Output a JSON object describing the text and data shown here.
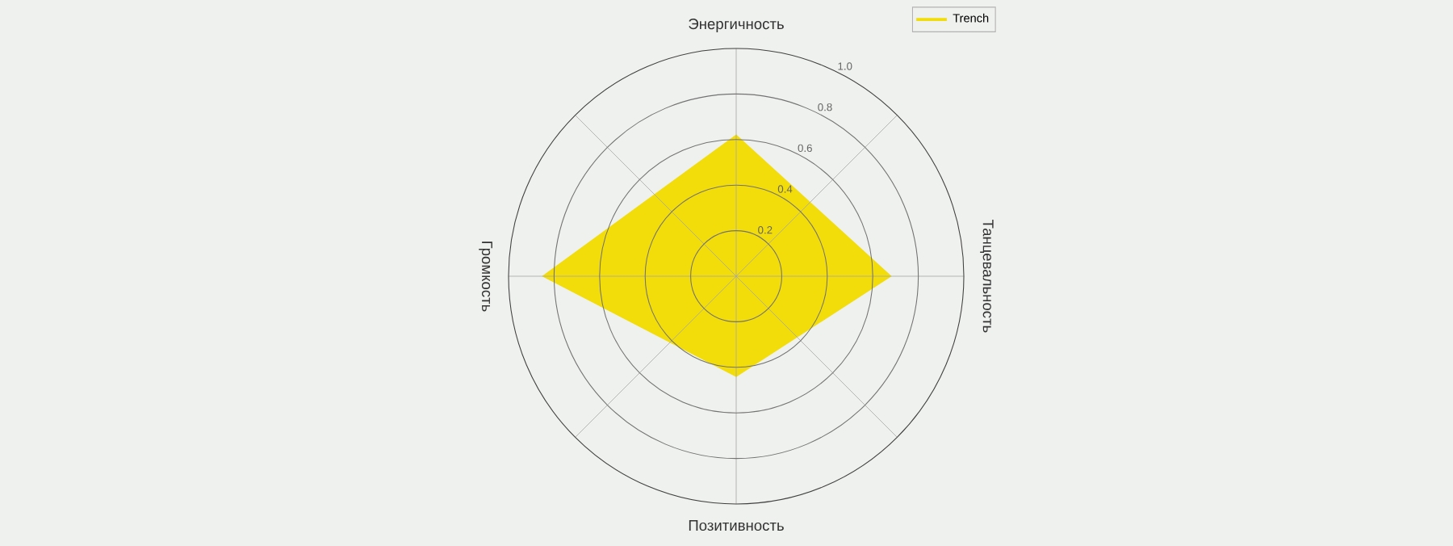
{
  "chart_data": {
    "type": "radar",
    "categories": [
      "Энергичность",
      "Танцевальность",
      "Позитивность",
      "Громкость"
    ],
    "series": [
      {
        "name": "Trench",
        "color": "#f2dc0a",
        "values": [
          0.62,
          0.68,
          0.44,
          0.85
        ]
      }
    ],
    "ylim": [
      0,
      1
    ],
    "yticks": [
      0.2,
      0.4,
      0.6,
      0.8,
      {
        "value": 1,
        "label": "1.0"
      }
    ],
    "grid": true,
    "legend": "top right"
  }
}
